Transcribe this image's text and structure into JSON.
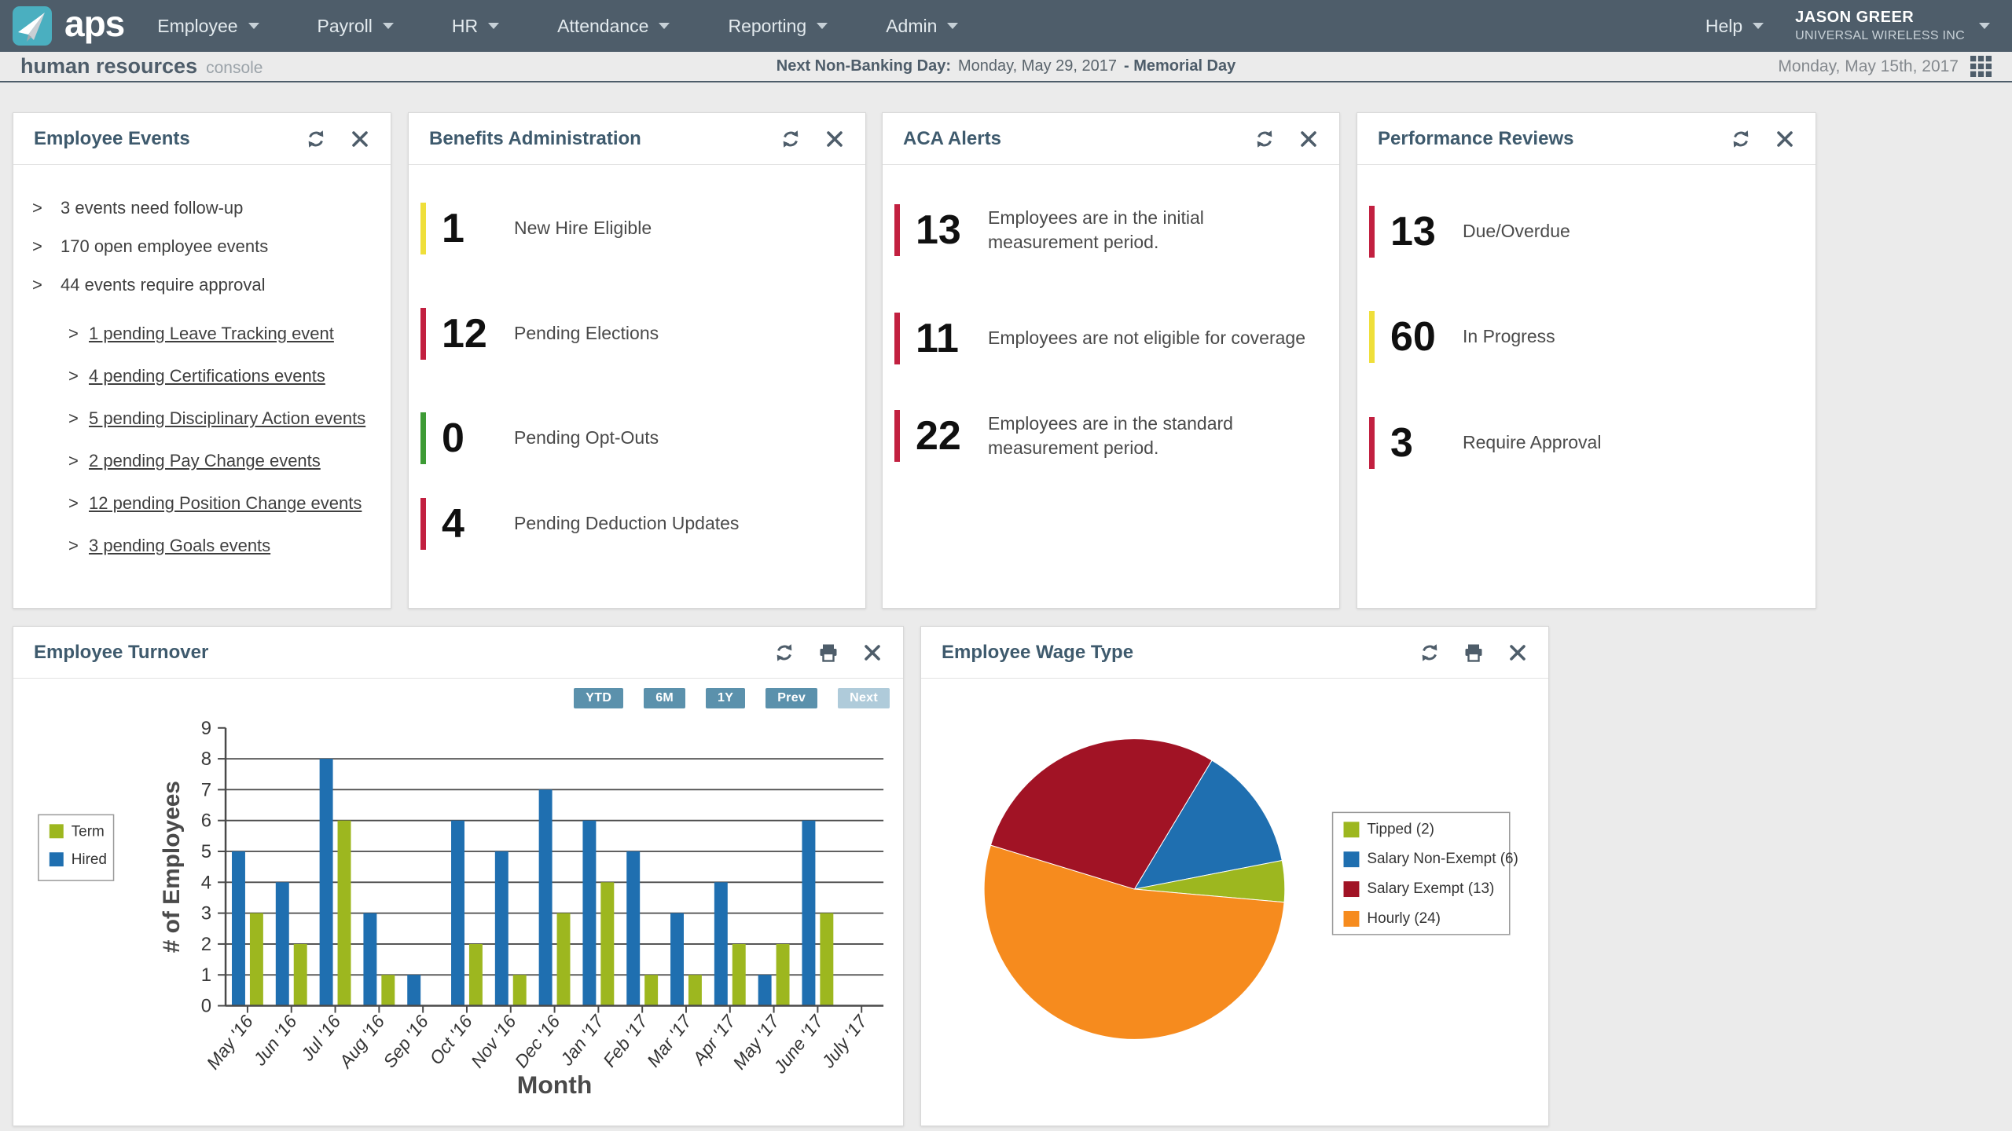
{
  "theme": {
    "slate": "#4E5D6A",
    "logo_teal": "#4AAFC0",
    "btn_blue": "#5B91AC",
    "btn_disabled": "#AFCBDA",
    "page_bg": "#EBEBEB",
    "card_title": "#3E5A6D"
  },
  "nav": {
    "logo_text": "aps",
    "menus": [
      "Employee",
      "Payroll",
      "HR",
      "Attendance",
      "Reporting",
      "Admin"
    ],
    "help_label": "Help",
    "user_name": "JASON GREER",
    "user_company": "UNIVERSAL WIRELESS INC"
  },
  "subheader": {
    "title": "human resources",
    "subtitle": "console",
    "banner_label": "Next Non-Banking Day:",
    "banner_date": "Monday, May 29, 2017",
    "banner_holiday": "- Memorial Day",
    "current_date": "Monday, May 15th, 2017"
  },
  "cards": {
    "employee_events": {
      "title": "Employee Events",
      "items": [
        "3 events need follow-up",
        "170 open employee events",
        "44 events require approval"
      ],
      "links": [
        "1 pending Leave Tracking event",
        "4 pending Certifications events",
        "5 pending Disciplinary Action events",
        "2 pending Pay Change events",
        "12 pending Position Change events",
        "3 pending Goals events"
      ]
    },
    "benefits": {
      "title": "Benefits Administration",
      "stats": [
        {
          "value": "1",
          "label": "New Hire Eligible",
          "color": "#EFDF3A"
        },
        {
          "value": "12",
          "label": "Pending Elections",
          "color": "#C22040"
        },
        {
          "value": "0",
          "label": "Pending Opt-Outs",
          "color": "#3D9B35"
        },
        {
          "value": "4",
          "label": "Pending Deduction Updates",
          "color": "#C22040"
        }
      ]
    },
    "aca": {
      "title": "ACA Alerts",
      "stats": [
        {
          "value": "13",
          "label": "Employees are in the initial\nmeasurement period.",
          "color": "#C22040"
        },
        {
          "value": "11",
          "label": "Employees are not eligible for coverage",
          "color": "#C22040"
        },
        {
          "value": "22",
          "label": "Employees are in the standard\nmeasurement period.",
          "color": "#C22040"
        }
      ]
    },
    "performance": {
      "title": "Performance Reviews",
      "stats": [
        {
          "value": "13",
          "label": "Due/Overdue",
          "color": "#C22040"
        },
        {
          "value": "60",
          "label": "In Progress",
          "color": "#EFDF3A"
        },
        {
          "value": "3",
          "label": "Require Approval",
          "color": "#C22040"
        }
      ]
    },
    "turnover": {
      "title": "Employee Turnover",
      "range_buttons": [
        "YTD",
        "6M",
        "1Y",
        "Prev",
        "Next"
      ]
    },
    "wage_type": {
      "title": "Employee Wage Type"
    }
  },
  "chart_data": [
    {
      "id": "turnover",
      "type": "bar",
      "title": "Employee Turnover",
      "categories": [
        "May '16",
        "Jun '16",
        "Jul '16",
        "Aug '16",
        "Sep '16",
        "Oct '16",
        "Nov '16",
        "Dec '16",
        "Jan '17",
        "Feb '17",
        "Mar '17",
        "Apr '17",
        "May '17",
        "June '17",
        "July '17"
      ],
      "series": [
        {
          "name": "Term",
          "color": "#9DB71F",
          "values": [
            3,
            2,
            6,
            1,
            0,
            2,
            1,
            3,
            4,
            1,
            1,
            2,
            2,
            3,
            0
          ]
        },
        {
          "name": "Hired",
          "color": "#1F6FB0",
          "values": [
            5,
            4,
            8,
            3,
            1,
            6,
            5,
            7,
            6,
            5,
            3,
            4,
            1,
            6,
            0
          ]
        }
      ],
      "xlabel": "Month",
      "ylabel": "# of Employees",
      "ylim": [
        0,
        9
      ],
      "ytick_step": 1,
      "grid": true,
      "legend_position": "left",
      "bar_order": [
        "Hired",
        "Term"
      ]
    },
    {
      "id": "wage_type",
      "type": "pie",
      "title": "Employee Wage Type",
      "slices": [
        {
          "label": "Tipped (2)",
          "value": 2,
          "color": "#9DB71F"
        },
        {
          "label": "Salary Non-Exempt (6)",
          "value": 6,
          "color": "#1F6FB0"
        },
        {
          "label": "Salary Exempt (13)",
          "value": 13,
          "color": "#A11325"
        },
        {
          "label": "Hourly (24)",
          "value": 24,
          "color": "#F68B1E"
        }
      ],
      "legend_position": "right",
      "start_angle_deg": 31,
      "draw_order": [
        1,
        0,
        3,
        2
      ]
    }
  ]
}
